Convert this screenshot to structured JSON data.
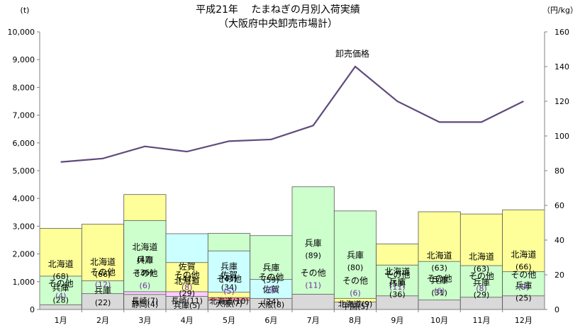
{
  "chart_data": {
    "type": "bar",
    "stacked": true,
    "title": "平成21年　 たまねぎの月別入荷実績",
    "subtitle": "（大阪府中央卸売市場計）",
    "y_left_unit": "(t)",
    "y_right_unit": "（円/kg）",
    "ylim_left": [
      0,
      10000
    ],
    "ylim_right": [
      0,
      160
    ],
    "y_left_ticks": [
      "0",
      "1,000",
      "2,000",
      "3,000",
      "4,000",
      "5,000",
      "6,000",
      "7,000",
      "8,000",
      "9,000",
      "10,000"
    ],
    "y_right_ticks": [
      "0",
      "20",
      "40",
      "60",
      "80",
      "100",
      "120",
      "140",
      "160"
    ],
    "categories": [
      "1月",
      "2月",
      "3月",
      "4月",
      "5月",
      "6月",
      "7月",
      "8月",
      "9月",
      "10月",
      "11月",
      "12月"
    ],
    "line_series": {
      "name": "卸売価格",
      "values": [
        85,
        87,
        94,
        91,
        97,
        98,
        106,
        140,
        120,
        108,
        108,
        120
      ]
    },
    "months": [
      {
        "segments": [
          {
            "name": "北海道",
            "value": 2920,
            "share": "(68)",
            "color": "#ffff99"
          },
          {
            "name": "兵庫",
            "value": 1200,
            "share": "(28)",
            "color": "#ccffcc"
          },
          {
            "name": "その他",
            "value": 170,
            "share": "(4)",
            "color": "#d9d9d9"
          }
        ]
      },
      {
        "segments": [
          {
            "name": "北海道",
            "value": 3070,
            "share": "(66)",
            "color": "#ffff99"
          },
          {
            "name": "兵庫",
            "value": 1030,
            "share": "(22)",
            "color": "#ccffcc"
          },
          {
            "name": "その他",
            "value": 570,
            "share": "(12)",
            "color": "#d9d9d9"
          }
        ]
      },
      {
        "segments": [
          {
            "name": "北海道",
            "value": 4140,
            "share": "(47)",
            "color": "#ffff99"
          },
          {
            "name": "兵庫",
            "value": 3200,
            "share": "(36)",
            "color": "#ccffcc"
          },
          {
            "name": "長崎",
            "value": 640,
            "share": "(7)",
            "color": "#ffccff"
          },
          {
            "name": "静岡",
            "value": 380,
            "share": "(4)",
            "color": "#ffc000"
          },
          {
            "name": "その他",
            "value": 540,
            "share": "(6)",
            "color": "#d9d9d9"
          }
        ]
      },
      {
        "segments": [
          {
            "name": "佐賀",
            "value": 2730,
            "share": "(47)",
            "color": "#ccffff"
          },
          {
            "name": "北海道",
            "value": 1690,
            "share": "(29)",
            "color": "#ffff99"
          },
          {
            "name": "長崎",
            "value": 640,
            "share": "(11)",
            "color": "#ffccff"
          },
          {
            "name": "兵庫",
            "value": 300,
            "share": "(5)",
            "color": "#ccffcc"
          },
          {
            "name": "その他",
            "value": 470,
            "share": "(8)",
            "color": "#d9d9d9"
          }
        ]
      },
      {
        "segments": [
          {
            "name": "兵庫",
            "value": 2740,
            "share": "(44)",
            "color": "#ccffcc"
          },
          {
            "name": "佐賀",
            "value": 2110,
            "share": "(34)",
            "color": "#ccffff"
          },
          {
            "name": "北海道",
            "value": 620,
            "share": "(10)",
            "color": "#ffff99"
          },
          {
            "name": "大阪",
            "value": 430,
            "share": "(7)",
            "color": "#ff9999"
          },
          {
            "name": "その他",
            "value": 330,
            "share": "(5)",
            "color": "#d9d9d9"
          }
        ]
      },
      {
        "segments": [
          {
            "name": "兵庫",
            "value": 2660,
            "share": "(59)",
            "color": "#ccffcc"
          },
          {
            "name": "佐賀",
            "value": 1080,
            "share": "(24)",
            "color": "#ccffff"
          },
          {
            "name": "大阪",
            "value": 360,
            "share": "(8)",
            "color": "#ff9999"
          },
          {
            "name": "その他",
            "value": 400,
            "share": "(9)",
            "color": "#d9d9d9"
          }
        ]
      },
      {
        "segments": [
          {
            "name": "兵庫",
            "value": 4420,
            "share": "(89)",
            "color": "#ccffcc"
          },
          {
            "name": "その他",
            "value": 550,
            "share": "(11)",
            "color": "#d9d9d9"
          }
        ]
      },
      {
        "segments": [
          {
            "name": "兵庫",
            "value": 3550,
            "share": "(80)",
            "color": "#ccffcc"
          },
          {
            "name": "北海道",
            "value": 400,
            "share": "(9)",
            "color": "#ffff99"
          },
          {
            "name": "中国",
            "value": 220,
            "share": "(5)",
            "color": "#3399ff"
          },
          {
            "name": "その他",
            "value": 270,
            "share": "(6)",
            "color": "#d9d9d9"
          }
        ]
      },
      {
        "segments": [
          {
            "name": "北海道",
            "value": 2360,
            "share": "(53)",
            "color": "#ffff99"
          },
          {
            "name": "兵庫",
            "value": 1600,
            "share": "(36)",
            "color": "#ccffcc"
          },
          {
            "name": "その他",
            "value": 490,
            "share": "(11)",
            "color": "#d9d9d9"
          }
        ]
      },
      {
        "segments": [
          {
            "name": "北海道",
            "value": 3520,
            "share": "(63)",
            "color": "#ffff99"
          },
          {
            "name": "兵庫",
            "value": 1730,
            "share": "(31)",
            "color": "#ccffcc"
          },
          {
            "name": "その他",
            "value": 340,
            "share": "(6)",
            "color": "#d9d9d9"
          }
        ]
      },
      {
        "segments": [
          {
            "name": "北海道",
            "value": 3440,
            "share": "(63)",
            "color": "#ffff99"
          },
          {
            "name": "兵庫",
            "value": 1580,
            "share": "(29)",
            "color": "#ccffcc"
          },
          {
            "name": "その他",
            "value": 440,
            "share": "(8)",
            "color": "#d9d9d9"
          }
        ]
      },
      {
        "segments": [
          {
            "name": "北海道",
            "value": 3590,
            "share": "(66)",
            "color": "#ffff99"
          },
          {
            "name": "兵庫",
            "value": 1360,
            "share": "(25)",
            "color": "#ccffcc"
          },
          {
            "name": "その他",
            "value": 490,
            "share": "(9)",
            "color": "#d9d9d9"
          }
        ]
      }
    ],
    "line_color": "#604a7b",
    "label_share_color": "#7030a0"
  }
}
